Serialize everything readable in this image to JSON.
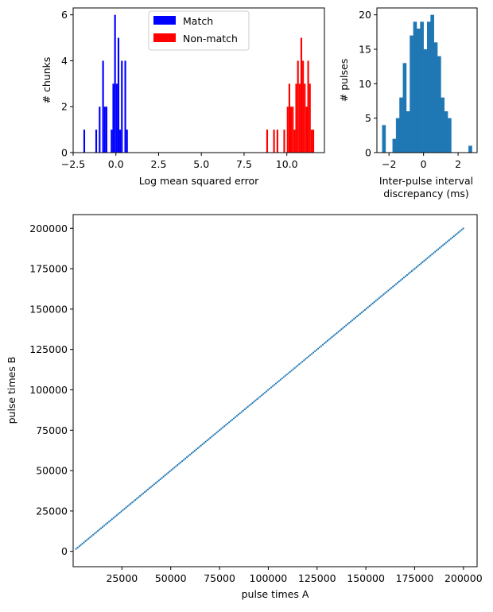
{
  "chart_data": [
    {
      "type": "bar",
      "subtype": "histogram",
      "xlabel": "Log mean squared error",
      "ylabel": "# chunks",
      "xlim": [
        -2.5,
        12.2
      ],
      "ylim": [
        0,
        6.3
      ],
      "xticks": [
        -2.5,
        0.0,
        2.5,
        5.0,
        7.5,
        10.0
      ],
      "xtick_labels": [
        "−2.5",
        "0.0",
        "2.5",
        "5.0",
        "7.5",
        "10.0"
      ],
      "yticks": [
        0,
        2,
        4,
        6
      ],
      "ytick_labels": [
        "0",
        "2",
        "4",
        "6"
      ],
      "grid": false,
      "legend_position": "top-center",
      "series": [
        {
          "name": "Match",
          "color": "#0000ff",
          "bin_width": 0.1,
          "bins": [
            {
              "x": -1.9,
              "count": 1
            },
            {
              "x": -1.2,
              "count": 1
            },
            {
              "x": -1.0,
              "count": 2
            },
            {
              "x": -0.8,
              "count": 4
            },
            {
              "x": -0.7,
              "count": 2
            },
            {
              "x": -0.6,
              "count": 2
            },
            {
              "x": -0.3,
              "count": 1
            },
            {
              "x": -0.2,
              "count": 3
            },
            {
              "x": -0.1,
              "count": 6
            },
            {
              "x": 0.0,
              "count": 3
            },
            {
              "x": 0.1,
              "count": 5
            },
            {
              "x": 0.2,
              "count": 1
            },
            {
              "x": 0.3,
              "count": 4
            },
            {
              "x": 0.5,
              "count": 4
            },
            {
              "x": 0.6,
              "count": 1
            }
          ]
        },
        {
          "name": "Non-match",
          "color": "#ff0000",
          "bin_width": 0.1,
          "bins": [
            {
              "x": 8.8,
              "count": 1
            },
            {
              "x": 9.2,
              "count": 1
            },
            {
              "x": 9.4,
              "count": 1
            },
            {
              "x": 9.8,
              "count": 1
            },
            {
              "x": 10.0,
              "count": 2
            },
            {
              "x": 10.1,
              "count": 3
            },
            {
              "x": 10.2,
              "count": 2
            },
            {
              "x": 10.3,
              "count": 2
            },
            {
              "x": 10.4,
              "count": 1
            },
            {
              "x": 10.5,
              "count": 3
            },
            {
              "x": 10.6,
              "count": 4
            },
            {
              "x": 10.7,
              "count": 3
            },
            {
              "x": 10.8,
              "count": 5
            },
            {
              "x": 10.9,
              "count": 4
            },
            {
              "x": 11.0,
              "count": 3
            },
            {
              "x": 11.1,
              "count": 2
            },
            {
              "x": 11.2,
              "count": 4
            },
            {
              "x": 11.3,
              "count": 3
            },
            {
              "x": 11.4,
              "count": 1
            },
            {
              "x": 11.5,
              "count": 1
            }
          ]
        }
      ]
    },
    {
      "type": "bar",
      "subtype": "histogram",
      "xlabel": "Inter-pulse interval discrepancy (ms)",
      "xlabel_lines": [
        "Inter-pulse interval",
        "discrepancy (ms)"
      ],
      "ylabel": "# pulses",
      "xlim": [
        -2.7,
        3.1
      ],
      "ylim": [
        0,
        21
      ],
      "xticks": [
        -2,
        0,
        2
      ],
      "xtick_labels": [
        "−2",
        "0",
        "2"
      ],
      "yticks": [
        0,
        5,
        10,
        15,
        20
      ],
      "ytick_labels": [
        "0",
        "5",
        "10",
        "15",
        "20"
      ],
      "grid": false,
      "series": [
        {
          "color": "#1f77b4",
          "bin_edges": [
            -2.4,
            -2.2,
            -2.0,
            -1.8,
            -1.6,
            -1.4,
            -1.2,
            -1.0,
            -0.8,
            -0.6,
            -0.4,
            -0.2,
            0.0,
            0.2,
            0.4,
            0.6,
            0.8,
            1.0,
            1.2,
            1.4,
            1.6,
            1.8,
            2.0,
            2.2,
            2.4,
            2.6,
            2.8,
            3.0
          ],
          "counts": [
            4,
            0,
            0,
            2,
            5,
            8,
            13,
            6,
            17,
            19,
            18,
            19,
            15,
            19,
            20,
            16,
            14,
            8,
            6,
            5,
            0,
            0,
            0,
            0,
            0,
            1,
            0
          ]
        }
      ]
    },
    {
      "type": "scatter",
      "xlabel": "pulse times A",
      "ylabel": "pulse times B",
      "xlim": [
        0,
        207000
      ],
      "ylim": [
        -9500,
        208500
      ],
      "xticks": [
        25000,
        50000,
        75000,
        100000,
        125000,
        150000,
        175000,
        200000
      ],
      "xtick_labels": [
        "25000",
        "50000",
        "75000",
        "100000",
        "125000",
        "150000",
        "175000",
        "200000"
      ],
      "yticks": [
        0,
        25000,
        50000,
        75000,
        100000,
        125000,
        150000,
        175000,
        200000
      ],
      "ytick_labels": [
        "0",
        "25000",
        "50000",
        "75000",
        "100000",
        "125000",
        "150000",
        "175000",
        "200000"
      ],
      "grid": false,
      "series": [
        {
          "color": "#1f77b4",
          "x_start": 1500,
          "x_end": 200000,
          "x_step": 800,
          "relation": "y = x",
          "x": [
            1500,
            2300,
            3100,
            3900,
            4700,
            5500,
            6300,
            7100,
            7900,
            8700,
            9500,
            10300,
            11100,
            11900,
            12700,
            13500,
            14300,
            15100,
            15900,
            16700,
            17500,
            18300,
            19100,
            19900,
            20700,
            21500,
            22300,
            23100,
            23900,
            24700,
            25500,
            26300,
            27100,
            27900,
            28700,
            29500,
            30300,
            31100,
            31900,
            32700,
            33500,
            34300,
            35100,
            35900,
            36700,
            37500,
            38300,
            39100,
            39900,
            40700,
            41500,
            42300,
            43100,
            43900,
            44700,
            45500,
            46300,
            47100,
            47900,
            48700,
            49500,
            50300,
            51100,
            51900,
            52700,
            53500,
            54300,
            55100,
            55900,
            56700,
            57500,
            58300,
            59100,
            59900,
            60700,
            61500,
            62300,
            63100,
            63900,
            64700,
            65500,
            66300,
            67100,
            67900,
            68700,
            69500,
            70300,
            71100,
            71900,
            72700,
            73500,
            74300,
            75100,
            75900,
            76700,
            77500,
            78300,
            79100,
            79900,
            80700,
            81500,
            82300,
            83100,
            83900,
            84700,
            85500,
            86300,
            87100,
            87900,
            88700,
            89500,
            90300,
            91100,
            91900,
            92700,
            93500,
            94300,
            95100,
            95900,
            96700,
            97500,
            98300,
            99100,
            99900,
            100700,
            101500,
            102300,
            103100,
            103900,
            104700,
            105500,
            106300,
            107100,
            107900,
            108700,
            109500,
            110300,
            111100,
            111900,
            112700,
            113500,
            114300,
            115100,
            115900,
            116700,
            117500,
            118300,
            119100,
            119900,
            120700,
            121500,
            122300,
            123100,
            123900,
            124700,
            125500,
            126300,
            127100,
            127900,
            128700,
            129500,
            130300,
            131100,
            131900,
            132700,
            133500,
            134300,
            135100,
            135900,
            136700,
            137500,
            138300,
            139100,
            139900,
            140700,
            141500,
            142300,
            143100,
            143900,
            144700,
            145500,
            146300,
            147100,
            147900,
            148700,
            149500,
            150300,
            151100,
            151900,
            152700,
            153500,
            154300,
            155100,
            155900,
            156700,
            157500,
            158300,
            159100,
            159900,
            160700,
            161500,
            162300,
            163100,
            163900,
            164700,
            165500,
            166300,
            167100,
            167900,
            168700,
            169500,
            170300,
            171100,
            171900,
            172700,
            173500,
            174300,
            175100,
            175900,
            176700,
            177500,
            178300,
            179100,
            179900,
            180700,
            181500,
            182300,
            183100,
            183900,
            184700,
            185500,
            186300,
            187100,
            187900,
            188700,
            189500,
            190300,
            191100,
            191900,
            192700,
            193500,
            194300,
            195100,
            195900,
            196700,
            197500,
            198300,
            199100,
            199900
          ]
        }
      ]
    }
  ]
}
